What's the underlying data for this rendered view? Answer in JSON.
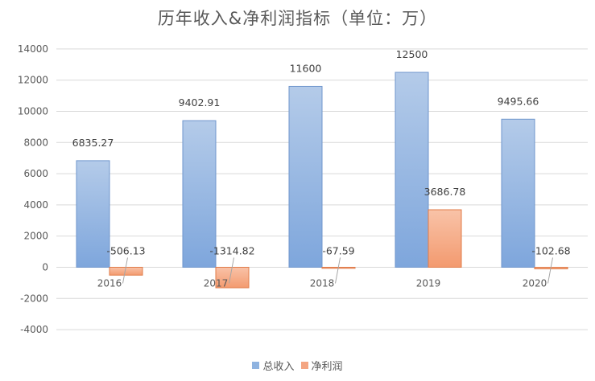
{
  "chart_data": {
    "type": "bar",
    "title": "历年收入&净利润指标（单位：万）",
    "categories": [
      "2016",
      "2017",
      "2018",
      "2019",
      "2020"
    ],
    "series": [
      {
        "name": "总收入",
        "values": [
          6835.27,
          9402.91,
          11600,
          12500,
          9495.66
        ],
        "labels": [
          "6835.27",
          "9402.91",
          "11600",
          "12500",
          "9495.66"
        ],
        "color": "#8fb3e0"
      },
      {
        "name": "净利润",
        "values": [
          -506.13,
          -1314.82,
          -67.59,
          3686.78,
          -102.68
        ],
        "labels": [
          "-506.13",
          "-1314.82",
          "-67.59",
          "3686.78",
          "-102.68"
        ],
        "color": "#f4a582"
      }
    ],
    "ylim": [
      -4000,
      14000
    ],
    "yticks": [
      -4000,
      -2000,
      0,
      2000,
      4000,
      6000,
      8000,
      10000,
      12000,
      14000
    ],
    "grid": true,
    "legend_position": "bottom"
  }
}
